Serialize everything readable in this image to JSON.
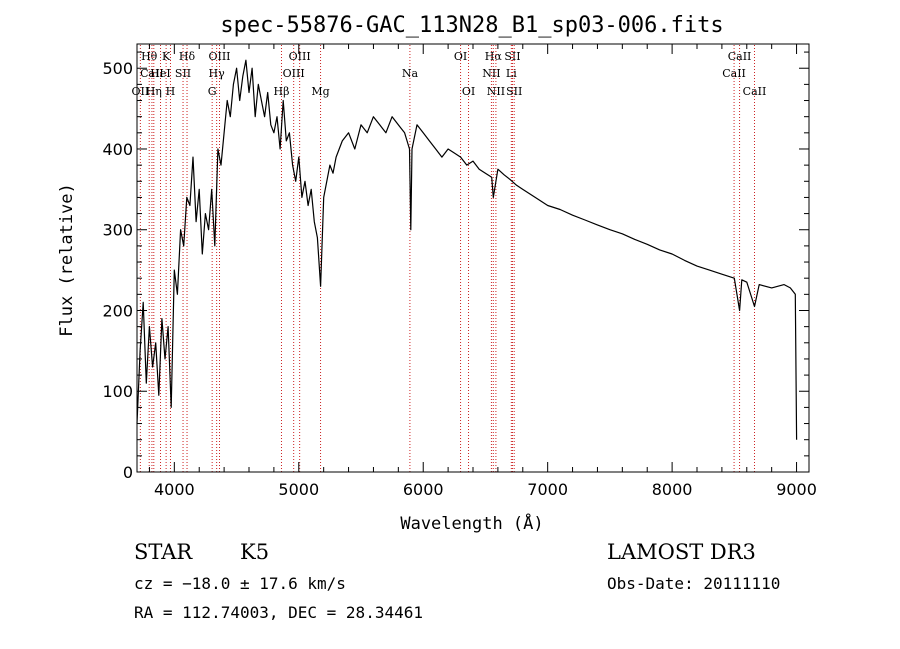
{
  "chart_data": {
    "type": "line",
    "title": "spec-55876-GAC_113N28_B1_sp03-006.fits",
    "xlabel": "Wavelength (Å)",
    "ylabel": "Flux (relative)",
    "xlim": [
      3700,
      9100
    ],
    "ylim": [
      0,
      530
    ],
    "xticks": [
      4000,
      5000,
      6000,
      7000,
      8000,
      9000
    ],
    "yticks": [
      0,
      100,
      200,
      300,
      400,
      500
    ],
    "series": [
      {
        "name": "flux",
        "x": [
          3700,
          3725,
          3750,
          3775,
          3800,
          3825,
          3850,
          3875,
          3900,
          3925,
          3950,
          3975,
          4000,
          4025,
          4050,
          4075,
          4100,
          4125,
          4150,
          4175,
          4200,
          4225,
          4250,
          4275,
          4300,
          4325,
          4350,
          4375,
          4400,
          4425,
          4450,
          4475,
          4500,
          4525,
          4550,
          4575,
          4600,
          4625,
          4650,
          4675,
          4700,
          4725,
          4750,
          4775,
          4800,
          4825,
          4850,
          4875,
          4900,
          4925,
          4950,
          4975,
          5000,
          5025,
          5050,
          5075,
          5100,
          5125,
          5150,
          5175,
          5200,
          5225,
          5250,
          5275,
          5300,
          5350,
          5400,
          5450,
          5500,
          5550,
          5600,
          5650,
          5700,
          5750,
          5800,
          5850,
          5890,
          5900,
          5910,
          5950,
          6000,
          6050,
          6100,
          6150,
          6200,
          6250,
          6300,
          6350,
          6400,
          6450,
          6500,
          6550,
          6563,
          6600,
          6650,
          6700,
          6750,
          6800,
          6900,
          7000,
          7100,
          7200,
          7300,
          7400,
          7500,
          7600,
          7700,
          7800,
          7900,
          8000,
          8100,
          8200,
          8300,
          8400,
          8500,
          8542,
          8560,
          8600,
          8662,
          8700,
          8800,
          8900,
          8950,
          8990,
          9000
        ],
        "values": [
          60,
          150,
          210,
          110,
          180,
          130,
          160,
          95,
          190,
          140,
          180,
          80,
          250,
          220,
          300,
          280,
          340,
          330,
          390,
          310,
          350,
          270,
          320,
          300,
          350,
          280,
          400,
          380,
          420,
          460,
          440,
          480,
          500,
          460,
          490,
          510,
          470,
          500,
          440,
          480,
          460,
          440,
          470,
          430,
          420,
          440,
          400,
          460,
          410,
          420,
          380,
          360,
          390,
          340,
          360,
          330,
          350,
          310,
          290,
          230,
          340,
          360,
          380,
          370,
          390,
          410,
          420,
          400,
          430,
          420,
          440,
          430,
          420,
          440,
          430,
          420,
          400,
          300,
          400,
          430,
          420,
          410,
          400,
          390,
          400,
          395,
          390,
          380,
          385,
          375,
          370,
          365,
          340,
          375,
          368,
          362,
          355,
          350,
          340,
          330,
          325,
          318,
          312,
          306,
          300,
          295,
          288,
          282,
          275,
          270,
          262,
          255,
          250,
          245,
          240,
          200,
          238,
          235,
          205,
          232,
          228,
          232,
          228,
          220,
          40
        ]
      }
    ],
    "spectral_lines": [
      {
        "label": "Hθ",
        "x": 3798,
        "row": 1
      },
      {
        "label": "CaII",
        "x": 3820,
        "row": 2
      },
      {
        "label": "OII",
        "x": 3727,
        "row": 3
      },
      {
        "label": "HeI",
        "x": 3889,
        "row": 2
      },
      {
        "label": "Hη",
        "x": 3835,
        "row": 3
      },
      {
        "label": "K",
        "x": 3934,
        "row": 1
      },
      {
        "label": "H",
        "x": 3969,
        "row": 3
      },
      {
        "label": "SII",
        "x": 4070,
        "row": 2
      },
      {
        "label": "Hδ",
        "x": 4102,
        "row": 1
      },
      {
        "label": "OIII",
        "x": 4363,
        "row": 1
      },
      {
        "label": "Hγ",
        "x": 4340,
        "row": 2
      },
      {
        "label": "G",
        "x": 4304,
        "row": 3
      },
      {
        "label": "Hβ",
        "x": 4861,
        "row": 3
      },
      {
        "label": "OIII",
        "x": 5007,
        "row": 1
      },
      {
        "label": "OIII",
        "x": 4959,
        "row": 2
      },
      {
        "label": "Mg",
        "x": 5175,
        "row": 3
      },
      {
        "label": "Na",
        "x": 5893,
        "row": 2
      },
      {
        "label": "OI",
        "x": 6300,
        "row": 1
      },
      {
        "label": "OI",
        "x": 6364,
        "row": 3
      },
      {
        "label": "Hα",
        "x": 6563,
        "row": 1
      },
      {
        "label": "NII",
        "x": 6548,
        "row": 2
      },
      {
        "label": "NII",
        "x": 6584,
        "row": 3
      },
      {
        "label": "SII",
        "x": 6717,
        "row": 1
      },
      {
        "label": "Li",
        "x": 6708,
        "row": 2
      },
      {
        "label": "SII",
        "x": 6731,
        "row": 3
      },
      {
        "label": "CaII",
        "x": 8542,
        "row": 1
      },
      {
        "label": "CaII",
        "x": 8498,
        "row": 2
      },
      {
        "label": "CaII",
        "x": 8662,
        "row": 3
      }
    ],
    "line_color": "#cc2222",
    "series_color": "#000000"
  },
  "info": {
    "object_class": "STAR",
    "subclass": "K5",
    "survey": "LAMOST DR3",
    "redshift": "cz = −18.0 ± 17.6 km/s",
    "obs_date": "Obs-Date: 20111110",
    "coords": "RA = 112.74003, DEC =  28.34461"
  }
}
